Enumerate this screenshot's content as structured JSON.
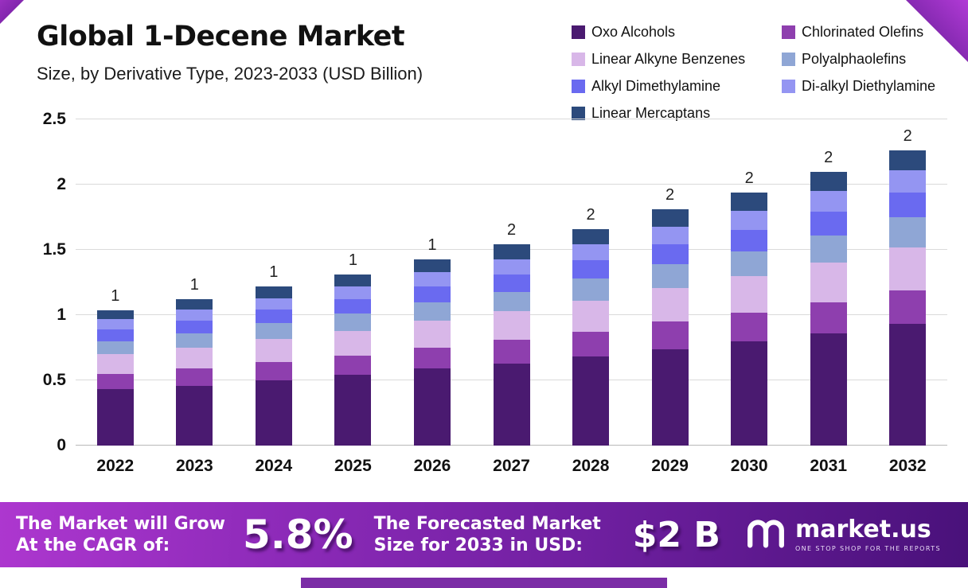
{
  "header": {
    "title": "Global 1-Decene Market",
    "subtitle": "Size, by Derivative Type, 2023-2033 (USD Billion)"
  },
  "chart_data": {
    "type": "bar",
    "stacked": true,
    "title": "Global 1-Decene Market Size, by Derivative Type, 2023-2033 (USD Billion)",
    "categories": [
      "2022",
      "2023",
      "2024",
      "2025",
      "2026",
      "2027",
      "2028",
      "2029",
      "2030",
      "2031",
      "2032"
    ],
    "series": [
      {
        "name": "Oxo Alcohols",
        "color": "#4a1a70",
        "values": [
          0.43,
          0.46,
          0.5,
          0.54,
          0.59,
          0.63,
          0.68,
          0.74,
          0.8,
          0.86,
          0.93
        ]
      },
      {
        "name": "Chlorinated Olefins",
        "color": "#8e3fae",
        "values": [
          0.12,
          0.13,
          0.14,
          0.15,
          0.16,
          0.18,
          0.19,
          0.21,
          0.22,
          0.24,
          0.26
        ]
      },
      {
        "name": "Linear Alkyne Benzenes",
        "color": "#d8b7e8",
        "values": [
          0.15,
          0.16,
          0.18,
          0.19,
          0.21,
          0.22,
          0.24,
          0.26,
          0.28,
          0.3,
          0.33
        ]
      },
      {
        "name": "Polyalphaolefins",
        "color": "#8fa6d5",
        "values": [
          0.1,
          0.11,
          0.12,
          0.13,
          0.14,
          0.15,
          0.17,
          0.18,
          0.19,
          0.21,
          0.23
        ]
      },
      {
        "name": "Alkyl Dimethylamine",
        "color": "#6a6af0",
        "values": [
          0.09,
          0.1,
          0.1,
          0.11,
          0.12,
          0.13,
          0.14,
          0.15,
          0.16,
          0.18,
          0.19
        ]
      },
      {
        "name": "Di-alkyl Diethylamine",
        "color": "#9495f2",
        "values": [
          0.08,
          0.08,
          0.09,
          0.1,
          0.11,
          0.12,
          0.12,
          0.14,
          0.15,
          0.16,
          0.17
        ]
      },
      {
        "name": "Linear Mercaptans",
        "color": "#2c4a7c",
        "values": [
          0.07,
          0.08,
          0.09,
          0.09,
          0.1,
          0.11,
          0.12,
          0.13,
          0.14,
          0.15,
          0.15
        ]
      }
    ],
    "bar_labels": [
      "1",
      "1",
      "1",
      "1",
      "1",
      "2",
      "2",
      "2",
      "2",
      "2",
      "2"
    ],
    "ylim": [
      0,
      2.5
    ],
    "yticks": [
      "0",
      "0.5",
      "1",
      "1.5",
      "2",
      "2.5"
    ],
    "grid": true,
    "legend_position": "top-right"
  },
  "banner": {
    "cagr_label": "The Market will Grow\nAt the CAGR of:",
    "cagr_value": "5.8%",
    "forecast_label": "The Forecasted Market\nSize for 2033 in USD:",
    "forecast_value": "$2 B",
    "brand": "market.us",
    "brand_tagline": "ONE STOP SHOP FOR THE REPORTS",
    "gradient_start": "#ad37cf",
    "gradient_end": "#49117a"
  }
}
